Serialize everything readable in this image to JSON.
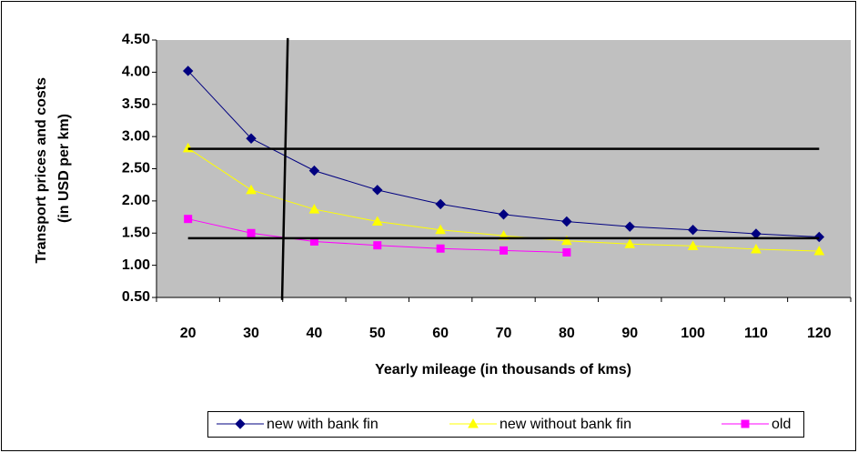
{
  "chart_data": {
    "type": "line",
    "y_axis_label": [
      "Transport prices and costs",
      "(in USD per km)"
    ],
    "x_axis_label": "Yearly mileage (in thousands of kms)",
    "categories": [
      "20",
      "30",
      "40",
      "50",
      "60",
      "70",
      "80",
      "90",
      "100",
      "110",
      "120"
    ],
    "series": [
      {
        "name": "new with bank fin",
        "color": "#000080",
        "marker": "diamond",
        "values": [
          4.02,
          2.97,
          2.47,
          2.17,
          1.95,
          1.79,
          1.68,
          1.6,
          1.55,
          1.49,
          1.44
        ]
      },
      {
        "name": "new without bank fin",
        "color": "#ffff00",
        "marker": "triangle",
        "values": [
          2.82,
          2.17,
          1.87,
          1.68,
          1.55,
          1.46,
          1.38,
          1.33,
          1.3,
          1.25,
          1.22
        ]
      },
      {
        "name": "old",
        "color": "#ff00ff",
        "marker": "square",
        "values": [
          1.72,
          1.5,
          1.37,
          1.31,
          1.26,
          1.23,
          1.2,
          null,
          null,
          null,
          null
        ]
      }
    ],
    "ylim": [
      0.5,
      4.5
    ],
    "yticks": [
      {
        "value": 0.5,
        "label": "0.50"
      },
      {
        "value": 1,
        "label": "1.00"
      },
      {
        "value": 1.5,
        "label": "1.50"
      },
      {
        "value": 2,
        "label": "2.00"
      },
      {
        "value": 2.5,
        "label": "2.50"
      },
      {
        "value": 3,
        "label": "3.00"
      },
      {
        "value": 3.5,
        "label": "3.50"
      },
      {
        "value": 4,
        "label": "4.00"
      },
      {
        "value": 4.5,
        "label": "4.50"
      }
    ],
    "reference_lines": [
      {
        "color": "#000000",
        "x": [
          20,
          120
        ],
        "y": [
          2.81,
          2.81
        ]
      },
      {
        "color": "#000000",
        "x": [
          20,
          120
        ],
        "y": [
          1.42,
          1.42
        ]
      },
      {
        "color": "#000000",
        "x": [
          35.8,
          34.9
        ],
        "y": [
          4.53,
          0.46
        ]
      }
    ],
    "plot_background": "#c0c0c0",
    "legend": "bottom"
  }
}
